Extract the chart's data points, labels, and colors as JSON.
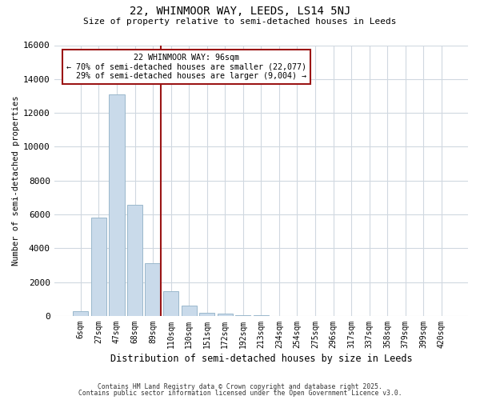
{
  "title": "22, WHINMOOR WAY, LEEDS, LS14 5NJ",
  "subtitle": "Size of property relative to semi-detached houses in Leeds",
  "xlabel": "Distribution of semi-detached houses by size in Leeds",
  "ylabel": "Number of semi-detached properties",
  "bar_labels": [
    "6sqm",
    "27sqm",
    "47sqm",
    "68sqm",
    "89sqm",
    "110sqm",
    "130sqm",
    "151sqm",
    "172sqm",
    "192sqm",
    "213sqm",
    "234sqm",
    "254sqm",
    "275sqm",
    "296sqm",
    "317sqm",
    "337sqm",
    "358sqm",
    "379sqm",
    "399sqm",
    "420sqm"
  ],
  "bar_values": [
    300,
    5800,
    13100,
    6550,
    3100,
    1450,
    620,
    200,
    130,
    55,
    30,
    10,
    0,
    0,
    0,
    0,
    0,
    0,
    0,
    0,
    0
  ],
  "bar_color": "#c9daea",
  "bar_edgecolor": "#9ab8cc",
  "vline_x": 4.45,
  "vline_color": "#9b1515",
  "annotation_title": "22 WHINMOOR WAY: 96sqm",
  "annotation_line2": "← 70% of semi-detached houses are smaller (22,077)",
  "annotation_line3": "29% of semi-detached houses are larger (9,004) →",
  "annotation_box_edgecolor": "#9b1515",
  "ylim": [
    0,
    16000
  ],
  "yticks": [
    0,
    2000,
    4000,
    6000,
    8000,
    10000,
    12000,
    14000,
    16000
  ],
  "footer1": "Contains HM Land Registry data © Crown copyright and database right 2025.",
  "footer2": "Contains public sector information licensed under the Open Government Licence v3.0.",
  "background_color": "#ffffff",
  "plot_background": "#ffffff",
  "grid_color": "#d0d8e0"
}
